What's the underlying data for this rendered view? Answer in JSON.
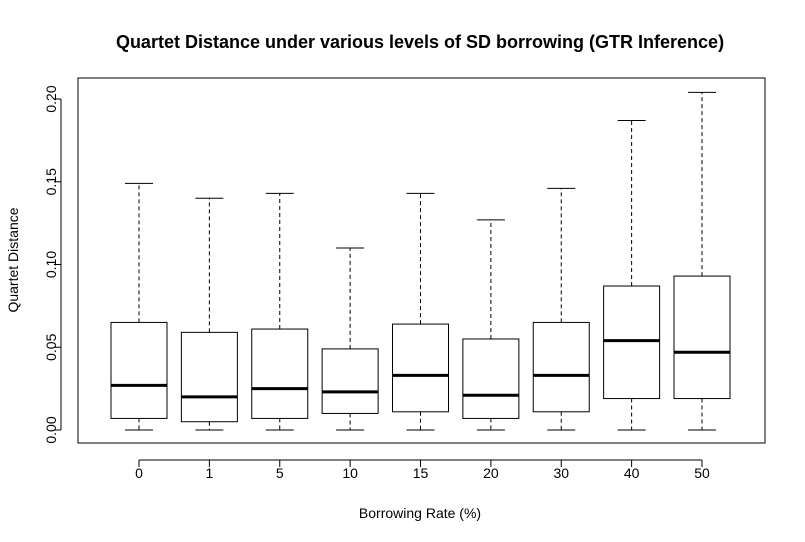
{
  "chart_data": {
    "type": "box",
    "title": "Quartet Distance under various levels of SD borrowing (GTR Inference)",
    "xlabel": "Borrowing Rate (%)",
    "ylabel": "Quartet Distance",
    "ylim": [
      -0.008,
      0.21
    ],
    "yticks": [
      "0.00",
      "0.05",
      "0.10",
      "0.15",
      "0.20"
    ],
    "categories": [
      "0",
      "1",
      "5",
      "10",
      "15",
      "20",
      "30",
      "40",
      "50"
    ],
    "boxes": [
      {
        "min": 0.0,
        "q1": 0.007,
        "median": 0.027,
        "q3": 0.065,
        "max": 0.149
      },
      {
        "min": 0.0,
        "q1": 0.005,
        "median": 0.02,
        "q3": 0.059,
        "max": 0.14
      },
      {
        "min": 0.0,
        "q1": 0.007,
        "median": 0.025,
        "q3": 0.061,
        "max": 0.143
      },
      {
        "min": 0.0,
        "q1": 0.01,
        "median": 0.023,
        "q3": 0.049,
        "max": 0.11
      },
      {
        "min": 0.0,
        "q1": 0.011,
        "median": 0.033,
        "q3": 0.064,
        "max": 0.143
      },
      {
        "min": 0.0,
        "q1": 0.007,
        "median": 0.021,
        "q3": 0.055,
        "max": 0.127
      },
      {
        "min": 0.0,
        "q1": 0.011,
        "median": 0.033,
        "q3": 0.065,
        "max": 0.146
      },
      {
        "min": 0.0,
        "q1": 0.019,
        "median": 0.054,
        "q3": 0.087,
        "max": 0.187
      },
      {
        "min": 0.0,
        "q1": 0.019,
        "median": 0.047,
        "q3": 0.093,
        "max": 0.204
      }
    ],
    "grid": false,
    "legend": "none"
  }
}
